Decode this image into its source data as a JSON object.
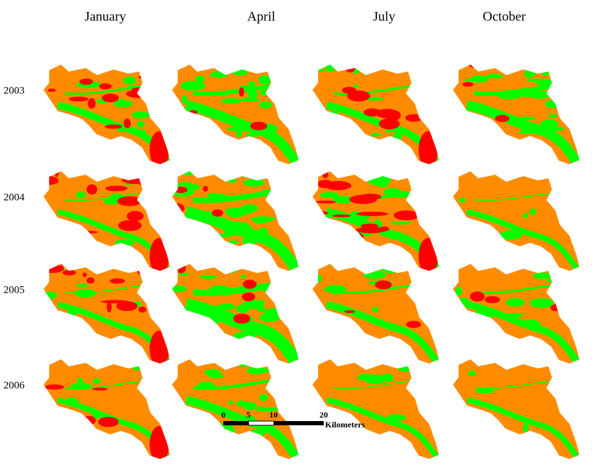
{
  "columns": [
    "January",
    "April",
    "July",
    "October"
  ],
  "rows": [
    "2003",
    "2004",
    "2005",
    "2006"
  ],
  "scale_bar": {
    "ticks": [
      0,
      5,
      10,
      20
    ],
    "unit": "Kilometers"
  }
}
